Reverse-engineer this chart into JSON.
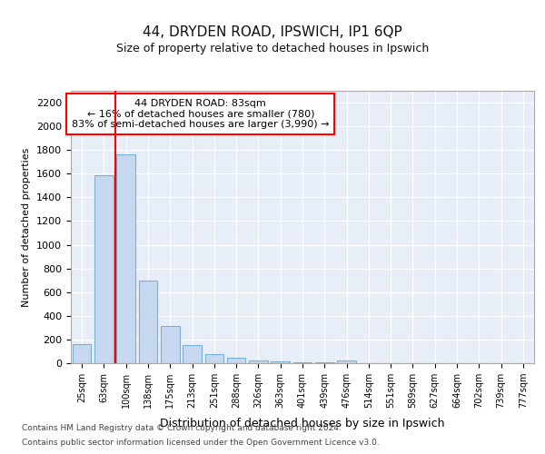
{
  "title1": "44, DRYDEN ROAD, IPSWICH, IP1 6QP",
  "title2": "Size of property relative to detached houses in Ipswich",
  "xlabel": "Distribution of detached houses by size in Ipswich",
  "ylabel": "Number of detached properties",
  "categories": [
    "25sqm",
    "63sqm",
    "100sqm",
    "138sqm",
    "175sqm",
    "213sqm",
    "251sqm",
    "288sqm",
    "326sqm",
    "363sqm",
    "401sqm",
    "439sqm",
    "476sqm",
    "514sqm",
    "551sqm",
    "589sqm",
    "627sqm",
    "664sqm",
    "702sqm",
    "739sqm",
    "777sqm"
  ],
  "values": [
    160,
    1590,
    1760,
    700,
    315,
    155,
    80,
    45,
    25,
    15,
    10,
    5,
    20,
    0,
    0,
    0,
    0,
    0,
    0,
    0,
    0
  ],
  "bar_color": "#c5d8f0",
  "bar_edge_color": "#7bafd4",
  "vline_color": "red",
  "vline_x": 1.5,
  "annotation_text": "44 DRYDEN ROAD: 83sqm\n← 16% of detached houses are smaller (780)\n83% of semi-detached houses are larger (3,990) →",
  "annotation_box_color": "white",
  "annotation_box_edge": "red",
  "ylim": [
    0,
    2300
  ],
  "yticks": [
    0,
    200,
    400,
    600,
    800,
    1000,
    1200,
    1400,
    1600,
    1800,
    2000,
    2200
  ],
  "footer1": "Contains HM Land Registry data © Crown copyright and database right 2024.",
  "footer2": "Contains public sector information licensed under the Open Government Licence v3.0.",
  "bg_color": "#ffffff",
  "plot_bg_color": "#e8eef8",
  "grid_color": "#ffffff"
}
